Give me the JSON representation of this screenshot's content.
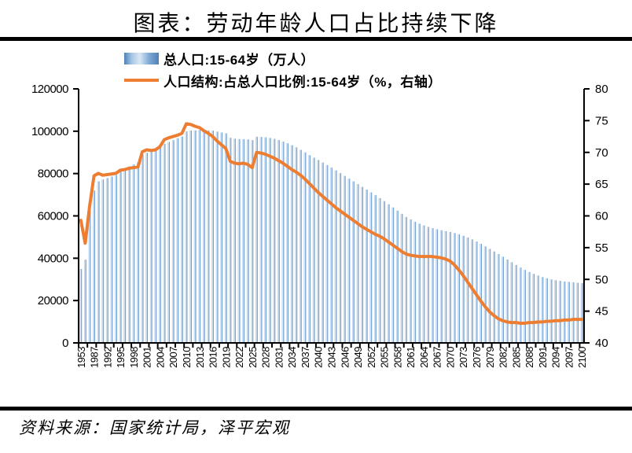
{
  "title": "图表：劳动年龄人口占比持续下降",
  "source": "资料来源：国家统计局，泽平宏观",
  "legend": [
    {
      "label": "总人口:15-64岁（万人）",
      "type": "bar",
      "color": "#5B9BD5"
    },
    {
      "label": "人口结构:占总人口比例:15-64岁（%，右轴）",
      "type": "line",
      "color": "#ED7D31"
    }
  ],
  "colors": {
    "bar_light": "#DDE9F5",
    "bar_mid": "#9DC0E2",
    "bar_dark": "#5C8CC2",
    "line": "#ED7D31",
    "axis": "#000000"
  },
  "chart_data": {
    "type": "bar",
    "title": "图表：劳动年龄人口占比持续下降",
    "xlabel": "",
    "ylabel_left": "总人口:15-64岁（万人）",
    "ylabel_right": "人口结构:占总人口比例:15-64岁（%，右轴）",
    "grid": false,
    "legend_position": "top",
    "x_label_interval": 3,
    "x_tick_interval": 2,
    "left_axis": {
      "min": 0,
      "max": 120000,
      "step": 20000,
      "ticks": [
        0,
        20000,
        40000,
        60000,
        80000,
        100000,
        120000
      ]
    },
    "right_axis": {
      "min": 40,
      "max": 80,
      "step": 5,
      "ticks": [
        40,
        45,
        50,
        55,
        60,
        65,
        70,
        75,
        80
      ]
    },
    "categories": [
      "1953",
      "1964",
      "1982",
      "1987",
      "1990",
      "1991",
      "1992",
      "1993",
      "1994",
      "1995",
      "1996",
      "1997",
      "1998",
      "1999",
      "2000",
      "2001",
      "2002",
      "2003",
      "2004",
      "2005",
      "2006",
      "2007",
      "2008",
      "2009",
      "2010",
      "2011",
      "2012",
      "2013",
      "2014",
      "2015",
      "2016",
      "2017",
      "2018",
      "2019",
      "2020",
      "2021",
      "2022",
      "2023",
      "2024",
      "2025",
      "2026",
      "2027",
      "2028",
      "2029",
      "2030",
      "2031",
      "2032",
      "2033",
      "2034",
      "2035",
      "2036",
      "2037",
      "2038",
      "2039",
      "2040",
      "2041",
      "2042",
      "2043",
      "2044",
      "2045",
      "2046",
      "2047",
      "2048",
      "2049",
      "2050",
      "2051",
      "2052",
      "2053",
      "2054",
      "2055",
      "2056",
      "2057",
      "2058",
      "2059",
      "2060",
      "2061",
      "2062",
      "2063",
      "2064",
      "2065",
      "2066",
      "2067",
      "2068",
      "2069",
      "2070",
      "2071",
      "2072",
      "2073",
      "2074",
      "2075",
      "2076",
      "2077",
      "2078",
      "2079",
      "2080",
      "2081",
      "2082",
      "2083",
      "2084",
      "2085",
      "2086",
      "2087",
      "2088",
      "2089",
      "2090",
      "2091",
      "2092",
      "2093",
      "2094",
      "2095",
      "2096",
      "2097",
      "2098",
      "2099",
      "2100"
    ],
    "series": [
      {
        "name": "总人口:15-64岁（万人）",
        "type": "bar",
        "axis": "left",
        "values": [
          34900,
          39300,
          62500,
          72000,
          76300,
          77200,
          77900,
          78600,
          79300,
          81400,
          82300,
          83400,
          84300,
          85200,
          88900,
          89800,
          90300,
          90900,
          92200,
          94100,
          94900,
          95800,
          96700,
          97500,
          99900,
          100300,
          100400,
          100600,
          100500,
          100400,
          100300,
          99800,
          99400,
          99000,
          96900,
          96500,
          96300,
          96200,
          96100,
          95800,
          97400,
          97300,
          97100,
          96800,
          96400,
          95800,
          95100,
          94300,
          93400,
          92400,
          91200,
          90000,
          88700,
          87500,
          86400,
          85200,
          84000,
          82800,
          81500,
          80200,
          78900,
          77600,
          76300,
          75000,
          73700,
          72400,
          71100,
          69800,
          68400,
          67000,
          65500,
          64000,
          62500,
          61000,
          59500,
          58300,
          57200,
          56300,
          55500,
          54800,
          54200,
          53700,
          53200,
          52800,
          52400,
          51900,
          51300,
          50600,
          49800,
          48900,
          47900,
          46800,
          45600,
          44400,
          43200,
          42000,
          40700,
          39400,
          38100,
          36800,
          35600,
          34500,
          33500,
          32600,
          31800,
          31100,
          30500,
          30000,
          29600,
          29300,
          29000,
          28800,
          28600,
          28400,
          28200
        ]
      },
      {
        "name": "人口结构:占总人口比例:15-64岁（%，右轴）",
        "type": "line",
        "axis": "right",
        "values": [
          59.3,
          55.7,
          61.5,
          66.3,
          66.7,
          66.4,
          66.5,
          66.6,
          66.7,
          67.2,
          67.3,
          67.5,
          67.6,
          67.7,
          70.1,
          70.4,
          70.3,
          70.4,
          70.9,
          72.0,
          72.3,
          72.5,
          72.7,
          73.0,
          74.5,
          74.4,
          74.1,
          73.9,
          73.4,
          73.0,
          72.5,
          71.8,
          71.2,
          70.6,
          68.6,
          68.3,
          68.2,
          68.3,
          68.1,
          67.6,
          70.0,
          69.9,
          69.7,
          69.4,
          69.1,
          68.7,
          68.3,
          67.8,
          67.3,
          66.9,
          66.4,
          65.8,
          65.1,
          64.4,
          63.7,
          63.1,
          62.5,
          61.9,
          61.3,
          60.8,
          60.3,
          59.8,
          59.3,
          58.8,
          58.3,
          57.9,
          57.5,
          57.1,
          56.8,
          56.4,
          55.9,
          55.4,
          54.9,
          54.4,
          54.0,
          53.8,
          53.7,
          53.6,
          53.6,
          53.6,
          53.6,
          53.5,
          53.4,
          53.2,
          52.9,
          52.3,
          51.5,
          50.6,
          49.6,
          48.6,
          47.6,
          46.6,
          45.7,
          44.9,
          44.3,
          43.8,
          43.5,
          43.3,
          43.2,
          43.2,
          43.1,
          43.1,
          43.2,
          43.2,
          43.3,
          43.3,
          43.4,
          43.4,
          43.5,
          43.5,
          43.6,
          43.6,
          43.7,
          43.7,
          43.7
        ]
      }
    ]
  }
}
